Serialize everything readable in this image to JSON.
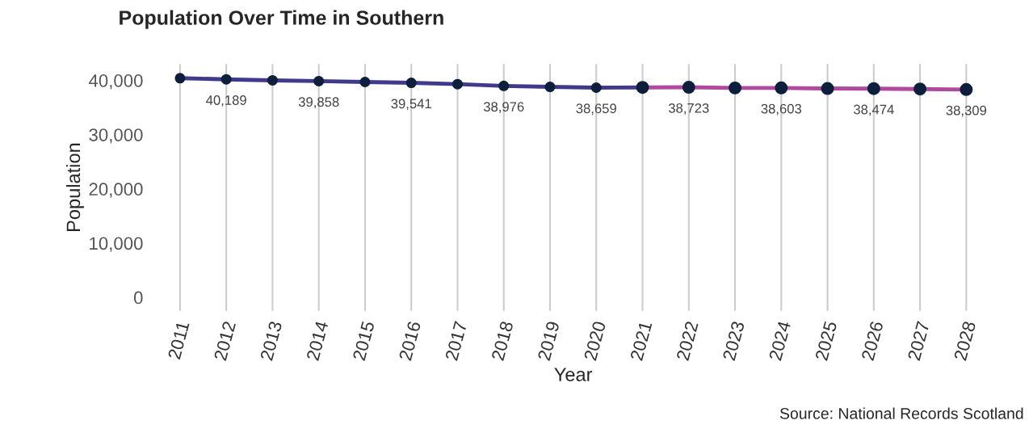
{
  "chart_data": {
    "type": "line",
    "title": "Population Over Time in Southern",
    "xlabel": "Year",
    "ylabel": "Population",
    "categories": [
      "2011",
      "2012",
      "2013",
      "2014",
      "2015",
      "2016",
      "2017",
      "2018",
      "2019",
      "2020",
      "2021",
      "2022",
      "2023",
      "2024",
      "2025",
      "2026",
      "2027",
      "2028"
    ],
    "series": [
      {
        "color": "#3f3a8c",
        "values": [
          40400,
          40189,
          40000,
          39858,
          39700,
          39541,
          39300,
          38976,
          38800,
          38659,
          38700,
          null,
          null,
          null,
          null,
          null,
          null,
          null
        ],
        "value_labels": [
          null,
          "40,189",
          null,
          "39,858",
          null,
          "39,541",
          null,
          "38,976",
          null,
          "38,659",
          null,
          null,
          null,
          null,
          null,
          null,
          null,
          null
        ]
      },
      {
        "color": "#b04a9e",
        "values": [
          null,
          null,
          null,
          null,
          null,
          null,
          null,
          null,
          null,
          null,
          38700,
          38723,
          38600,
          38603,
          38500,
          38474,
          38400,
          38309
        ],
        "value_labels": [
          null,
          null,
          null,
          null,
          null,
          null,
          null,
          null,
          null,
          null,
          null,
          "38,723",
          null,
          "38,603",
          null,
          "38,474",
          null,
          "38,309"
        ]
      }
    ],
    "ylim": [
      -2500,
      43000
    ],
    "yticks": [
      0,
      {
        "value": 10000,
        "label": "10,000"
      },
      {
        "value": 20000,
        "label": "20,000"
      },
      {
        "value": 30000,
        "label": "30,000"
      },
      {
        "value": 40000,
        "label": "40,000"
      }
    ],
    "grid": "x",
    "marker": "circle",
    "line_style": "solid",
    "legend": false,
    "annotations": [
      "Source: National Records Scotland"
    ]
  }
}
